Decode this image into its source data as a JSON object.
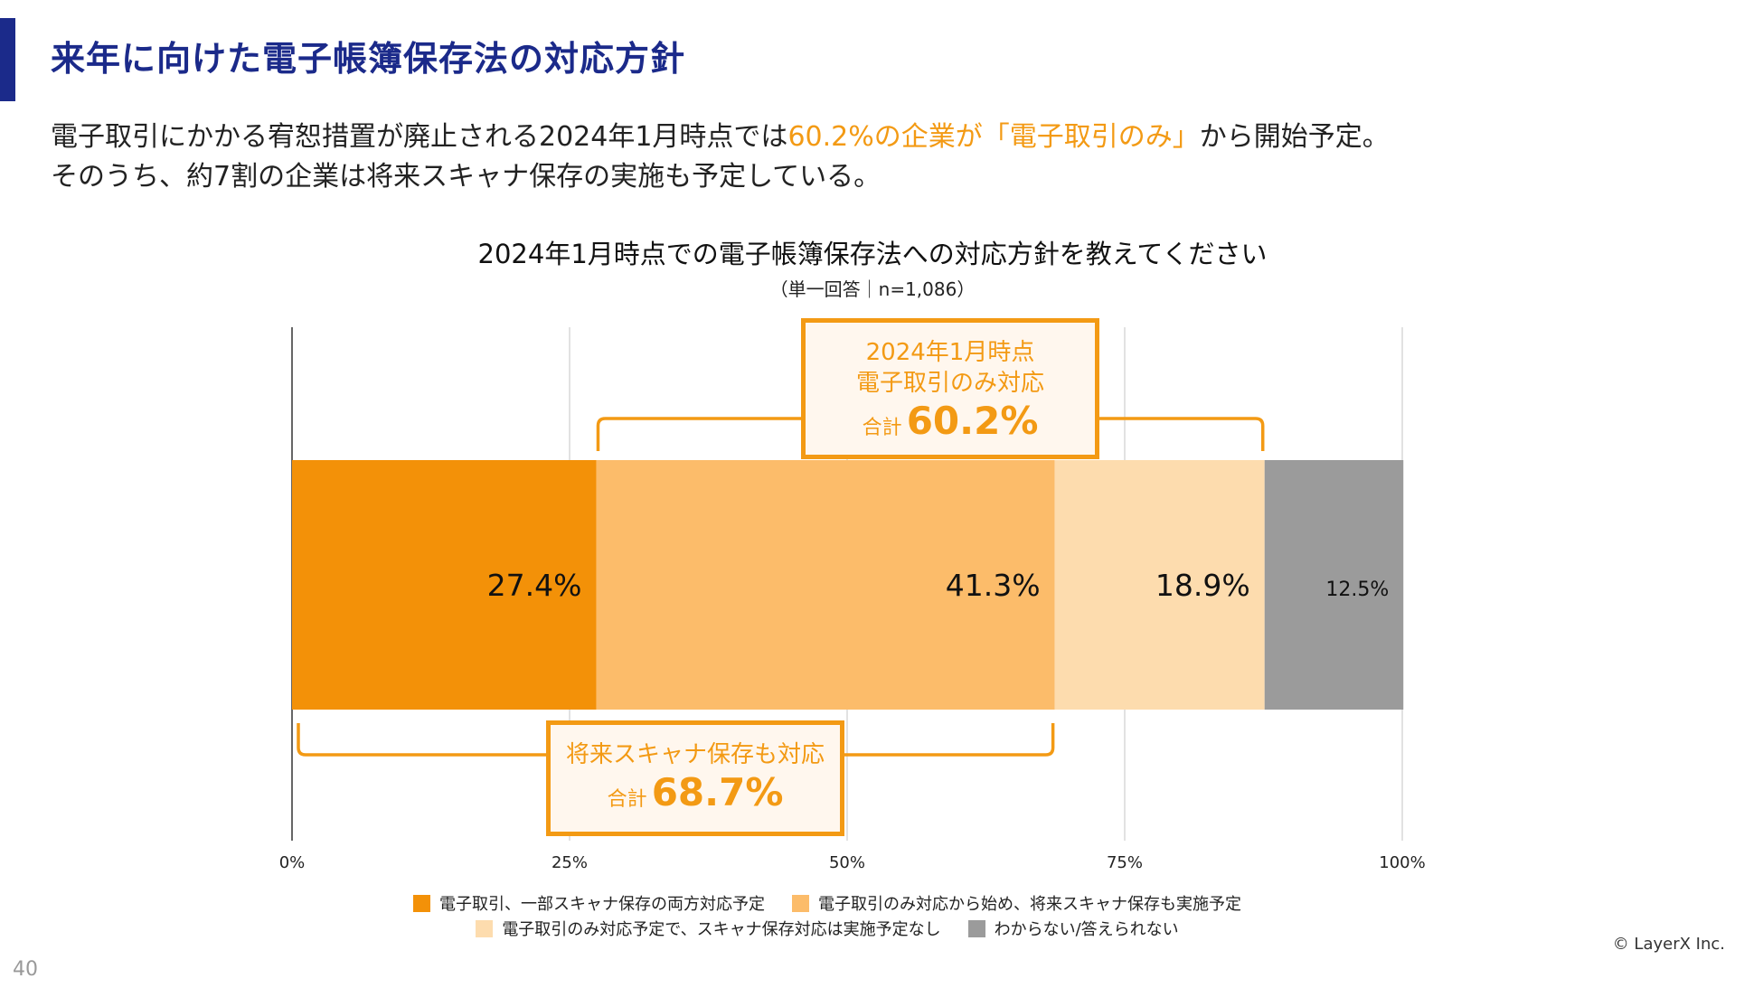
{
  "slide": {
    "title": "来年に向けた電子帳簿保存法の対応方針",
    "lead_line1_pre": "電子取引にかかる宥恕措置が廃止される2024年1月時点では",
    "lead_line1_highlight": "60.2%の企業が「電子取引のみ」",
    "lead_line1_post": "から開始予定。",
    "lead_line2": "そのうち、約7割の企業は将来スキャナ保存の実施も予定している。",
    "copyright": "© LayerX Inc.",
    "page_number": "40"
  },
  "callouts": {
    "top": {
      "line1": "2024年1月時点",
      "line2": "電子取引のみ対応",
      "prefix": "合計",
      "value": "60.2%"
    },
    "bottom": {
      "line1": "将来スキャナ保存も対応",
      "prefix": "合計",
      "value": "68.7%"
    }
  },
  "chart_data": {
    "type": "bar",
    "orientation": "horizontal-stacked",
    "title": "2024年1月時点での電子帳簿保存法への対応方針を教えてください",
    "subtitle": "（単一回答｜n=1,086）",
    "xlim": [
      0,
      100
    ],
    "x_ticks": [
      0,
      25,
      50,
      75,
      100
    ],
    "x_tick_labels": [
      "0%",
      "25%",
      "50%",
      "75%",
      "100%"
    ],
    "grid": true,
    "legend_position": "bottom",
    "series": [
      {
        "name": "電子取引、一部スキャナ保存の両方対応予定",
        "value": 27.4,
        "label": "27.4%",
        "color": "#f39108"
      },
      {
        "name": "電子取引のみ対応から始め、将来スキャナ保存も実施予定",
        "value": 41.3,
        "label": "41.3%",
        "color": "#fcbc6a"
      },
      {
        "name": "電子取引のみ対応予定で、スキャナ保存対応は実施予定なし",
        "value": 18.9,
        "label": "18.9%",
        "color": "#fddcae"
      },
      {
        "name": "わからない/答えられない",
        "value": 12.5,
        "label": "12.5%",
        "color": "#9b9b9b"
      }
    ],
    "brackets": [
      {
        "name": "electronic-only-total",
        "from": 27.4,
        "to": 87.6,
        "side": "top"
      },
      {
        "name": "scanner-total",
        "from": 0,
        "to": 68.7,
        "side": "bottom"
      }
    ]
  }
}
